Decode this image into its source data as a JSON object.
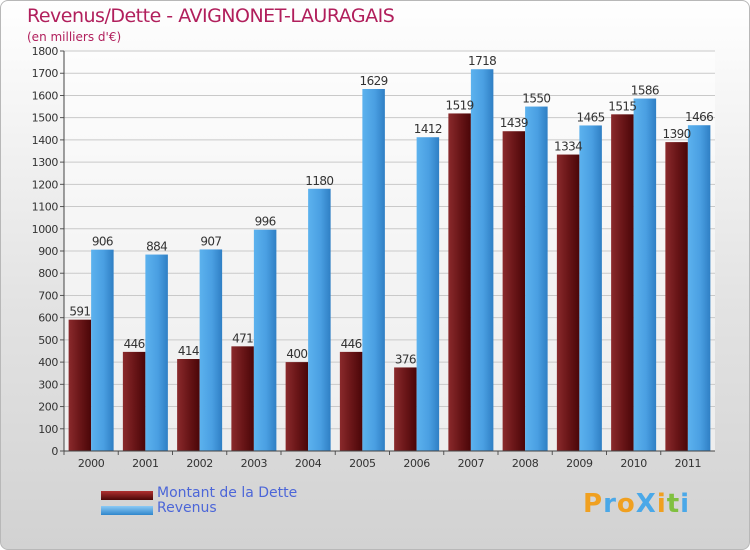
{
  "chart_data": {
    "type": "bar",
    "title": "Revenus/Dette - AVIGNONET-LAURAGAIS",
    "subtitle": "(en milliers d'€)",
    "categories": [
      "2000",
      "2001",
      "2002",
      "2003",
      "2004",
      "2005",
      "2006",
      "2007",
      "2008",
      "2009",
      "2010",
      "2011"
    ],
    "series": [
      {
        "name": "Montant de la Dette",
        "color": "#6b1416",
        "values": [
          591,
          446,
          414,
          471,
          400,
          446,
          376,
          1519,
          1439,
          1334,
          1515,
          1390
        ]
      },
      {
        "name": "Revenus",
        "color": "#4ea3e4",
        "values": [
          906,
          884,
          907,
          996,
          1180,
          1629,
          1412,
          1718,
          1550,
          1465,
          1586,
          1466
        ]
      }
    ],
    "ylim": [
      0,
      1800
    ],
    "yticks": [
      0,
      100,
      200,
      300,
      400,
      500,
      600,
      700,
      800,
      900,
      1000,
      1100,
      1200,
      1300,
      1400,
      1500,
      1600,
      1700,
      1800
    ],
    "grid": true,
    "legend_position": "bottom-left"
  },
  "logo": {
    "text": "ProXiti",
    "letters": [
      "P",
      "r",
      "o",
      "X",
      "i",
      "t",
      "i"
    ],
    "colors": [
      "#f0a020",
      "#4aa8e8",
      "#f0a020",
      "#4aa8e8",
      "#f0a020",
      "#80c040",
      "#4aa8e8"
    ]
  }
}
